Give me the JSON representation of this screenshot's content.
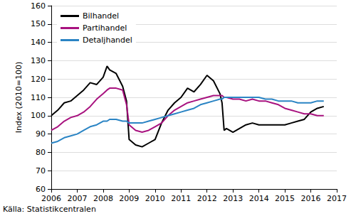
{
  "chart_data": {
    "type": "line",
    "y_label": "Index (2010=100)",
    "source": "Källa: Statistikcentralen",
    "x": [
      2006,
      2006.25,
      2006.5,
      2006.75,
      2007,
      2007.25,
      2007.5,
      2007.75,
      2008,
      2008.15,
      2008.25,
      2008.5,
      2008.75,
      2008.9,
      2009,
      2009.25,
      2009.5,
      2009.75,
      2010,
      2010.25,
      2010.5,
      2010.75,
      2011,
      2011.25,
      2011.5,
      2011.75,
      2012,
      2012.25,
      2012.5,
      2012.58,
      2012.66,
      2012.75,
      2013,
      2013.25,
      2013.5,
      2013.75,
      2014,
      2014.25,
      2014.5,
      2014.75,
      2015,
      2015.25,
      2015.5,
      2015.75,
      2016,
      2016.25,
      2016.5
    ],
    "series": [
      {
        "name": "Bilhandel",
        "color": "#000000",
        "values": [
          100,
          103,
          107,
          108,
          111,
          114,
          118,
          117,
          121,
          127,
          125,
          123,
          116,
          108,
          87,
          84,
          83,
          85,
          87,
          96,
          103,
          107,
          110,
          115,
          113,
          117,
          122,
          119,
          112,
          107,
          92,
          93,
          91,
          93,
          95,
          96,
          95,
          95,
          95,
          95,
          95,
          96,
          97,
          98,
          102,
          104,
          105
        ]
      },
      {
        "name": "Partihandel",
        "color": "#a8127f",
        "values": [
          92,
          94,
          97,
          99,
          100,
          102,
          105,
          109,
          112,
          114,
          115,
          115,
          114,
          106,
          95,
          92,
          91,
          92,
          94,
          96,
          100,
          103,
          105,
          107,
          108,
          109,
          110,
          111,
          111,
          111,
          110,
          110,
          109,
          109,
          108,
          109,
          108,
          108,
          107,
          106,
          104,
          103,
          102,
          101,
          101,
          100,
          100
        ]
      },
      {
        "name": "Detaljhandel",
        "color": "#2a84c4",
        "values": [
          85,
          86,
          88,
          89,
          90,
          92,
          94,
          95,
          97,
          97,
          98,
          98,
          97,
          97,
          96,
          96,
          96,
          97,
          98,
          99,
          100,
          101,
          102,
          103,
          104,
          106,
          107,
          108,
          109,
          109,
          110,
          110,
          110,
          110,
          110,
          110,
          110,
          109,
          109,
          108,
          108,
          108,
          107,
          107,
          107,
          108,
          108
        ]
      }
    ],
    "xlim": [
      2006,
      2017
    ],
    "xticks": [
      2006,
      2007,
      2008,
      2009,
      2010,
      2011,
      2012,
      2013,
      2014,
      2015,
      2016,
      2017
    ],
    "ylim": [
      60,
      160
    ],
    "yticks": [
      60,
      70,
      80,
      90,
      100,
      110,
      120,
      130,
      140,
      150,
      160
    ],
    "grid": true,
    "legend": "top-left"
  }
}
